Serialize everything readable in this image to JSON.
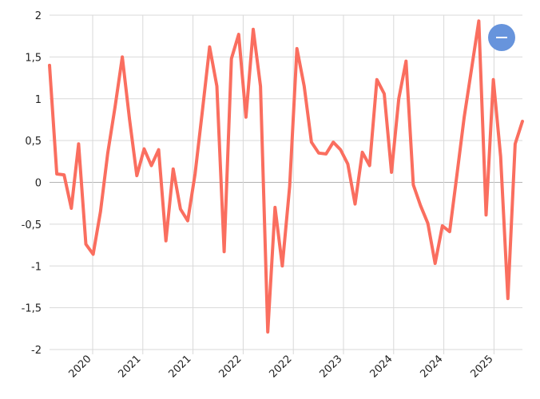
{
  "chart_data": {
    "type": "line",
    "title": "",
    "xlabel": "",
    "ylabel": "",
    "ylim": [
      -2,
      2
    ],
    "y_ticks": [
      -2,
      -1.5,
      -1,
      -0.5,
      0,
      0.5,
      1,
      1.5,
      2
    ],
    "y_tick_labels": [
      "-2",
      "-1,5",
      "-1",
      "-0,5",
      "0",
      "0,5",
      "1",
      "1,5",
      "2"
    ],
    "x_tick_labels": [
      "2020",
      "2021",
      "2021",
      "2022",
      "2022",
      "2023",
      "2024",
      "2024",
      "2025"
    ],
    "grid": true,
    "series": [
      {
        "name": "",
        "color": "#fa6e5f",
        "values": [
          1.4,
          0.1,
          0.09,
          -0.31,
          0.46,
          -0.74,
          -0.86,
          -0.35,
          0.35,
          0.9,
          1.5,
          0.75,
          0.08,
          0.4,
          0.2,
          0.39,
          -0.7,
          0.16,
          -0.32,
          -0.46,
          0.1,
          0.85,
          1.62,
          1.15,
          -0.83,
          1.48,
          1.77,
          0.78,
          1.83,
          1.15,
          -1.79,
          -0.3,
          -1.0,
          -0.05,
          1.6,
          1.15,
          0.48,
          0.35,
          0.34,
          0.48,
          0.39,
          0.22,
          -0.26,
          0.36,
          0.2,
          1.23,
          1.06,
          0.12,
          1.0,
          1.45,
          -0.03,
          -0.28,
          -0.49,
          -0.97,
          -0.52,
          -0.59,
          0.09,
          0.78,
          1.35,
          1.93,
          -0.39,
          1.23,
          0.31,
          -1.39,
          0.46,
          0.73
        ]
      }
    ]
  },
  "controls": {
    "zoom_out_icon": "minus-icon",
    "zoom_out_color": "#6794dc"
  }
}
